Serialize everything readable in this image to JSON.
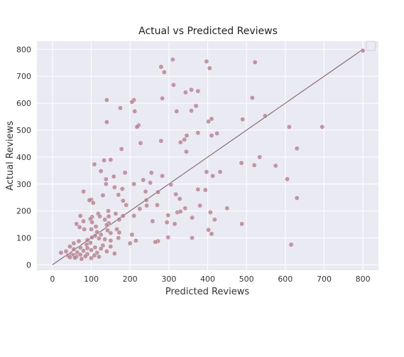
{
  "chart_data": {
    "type": "scatter",
    "title": "Actual vs Predicted Reviews",
    "xlabel": "Predicted Reviews",
    "ylabel": "Actual Reviews",
    "xlim": [
      -40,
      840
    ],
    "ylim": [
      -20,
      830
    ],
    "xticks": [
      0,
      100,
      200,
      300,
      400,
      500,
      600,
      700,
      800
    ],
    "yticks": [
      0,
      100,
      200,
      300,
      400,
      500,
      600,
      700,
      800
    ],
    "grid": true,
    "legend": "top-right (empty box)",
    "colors": {
      "background": "#eaeaf2",
      "grid": "#ffffff",
      "points": "#b07a88",
      "reference_line": "#8a6a7e"
    },
    "reference_line": {
      "from": [
        0,
        0
      ],
      "to": [
        800,
        800
      ]
    },
    "points": [
      [
        800,
        795
      ],
      [
        310,
        762
      ],
      [
        397,
        755
      ],
      [
        522,
        752
      ],
      [
        280,
        735
      ],
      [
        288,
        715
      ],
      [
        405,
        730
      ],
      [
        312,
        668
      ],
      [
        358,
        650
      ],
      [
        375,
        645
      ],
      [
        343,
        640
      ],
      [
        515,
        620
      ],
      [
        283,
        618
      ],
      [
        140,
        612
      ],
      [
        210,
        612
      ],
      [
        205,
        605
      ],
      [
        370,
        590
      ],
      [
        358,
        572
      ],
      [
        320,
        570
      ],
      [
        212,
        570
      ],
      [
        175,
        582
      ],
      [
        548,
        553
      ],
      [
        410,
        542
      ],
      [
        402,
        532
      ],
      [
        140,
        530
      ],
      [
        490,
        540
      ],
      [
        222,
        518
      ],
      [
        218,
        512
      ],
      [
        610,
        512
      ],
      [
        695,
        512
      ],
      [
        375,
        490
      ],
      [
        424,
        488
      ],
      [
        346,
        480
      ],
      [
        410,
        480
      ],
      [
        340,
        465
      ],
      [
        280,
        460
      ],
      [
        330,
        455
      ],
      [
        227,
        452
      ],
      [
        178,
        430
      ],
      [
        630,
        432
      ],
      [
        345,
        420
      ],
      [
        487,
        378
      ],
      [
        534,
        400
      ],
      [
        133,
        388
      ],
      [
        150,
        390
      ],
      [
        108,
        373
      ],
      [
        520,
        370
      ],
      [
        575,
        368
      ],
      [
        125,
        348
      ],
      [
        255,
        342
      ],
      [
        397,
        345
      ],
      [
        432,
        345
      ],
      [
        187,
        342
      ],
      [
        413,
        330
      ],
      [
        283,
        330
      ],
      [
        158,
        328
      ],
      [
        605,
        318
      ],
      [
        138,
        318
      ],
      [
        234,
        315
      ],
      [
        138,
        300
      ],
      [
        252,
        305
      ],
      [
        305,
        298
      ],
      [
        160,
        288
      ],
      [
        210,
        300
      ],
      [
        375,
        280
      ],
      [
        180,
        282
      ],
      [
        394,
        278
      ],
      [
        240,
        272
      ],
      [
        272,
        270
      ],
      [
        318,
        262
      ],
      [
        170,
        260
      ],
      [
        80,
        272
      ],
      [
        130,
        258
      ],
      [
        328,
        245
      ],
      [
        630,
        248
      ],
      [
        242,
        240
      ],
      [
        100,
        242
      ],
      [
        95,
        240
      ],
      [
        182,
        238
      ],
      [
        105,
        230
      ],
      [
        243,
        220
      ],
      [
        380,
        220
      ],
      [
        190,
        222
      ],
      [
        225,
        208
      ],
      [
        270,
        222
      ],
      [
        144,
        200
      ],
      [
        342,
        210
      ],
      [
        322,
        195
      ],
      [
        118,
        190
      ],
      [
        330,
        198
      ],
      [
        450,
        210
      ],
      [
        407,
        195
      ],
      [
        210,
        182
      ],
      [
        163,
        190
      ],
      [
        182,
        182
      ],
      [
        145,
        180
      ],
      [
        298,
        184
      ],
      [
        122,
        180
      ],
      [
        72,
        182
      ],
      [
        102,
        178
      ],
      [
        360,
        175
      ],
      [
        98,
        170
      ],
      [
        418,
        168
      ],
      [
        135,
        168
      ],
      [
        172,
        168
      ],
      [
        258,
        162
      ],
      [
        295,
        158
      ],
      [
        315,
        152
      ],
      [
        488,
        152
      ],
      [
        80,
        162
      ],
      [
        102,
        158
      ],
      [
        145,
        155
      ],
      [
        62,
        152
      ],
      [
        140,
        148
      ],
      [
        70,
        140
      ],
      [
        112,
        142
      ],
      [
        100,
        132
      ],
      [
        82,
        132
      ],
      [
        166,
        132
      ],
      [
        402,
        130
      ],
      [
        142,
        128
      ],
      [
        115,
        122
      ],
      [
        172,
        120
      ],
      [
        150,
        118
      ],
      [
        410,
        115
      ],
      [
        125,
        112
      ],
      [
        205,
        112
      ],
      [
        110,
        108
      ],
      [
        102,
        102
      ],
      [
        360,
        100
      ],
      [
        298,
        102
      ],
      [
        170,
        100
      ],
      [
        120,
        98
      ],
      [
        135,
        95
      ],
      [
        90,
        92
      ],
      [
        150,
        90
      ],
      [
        215,
        90
      ],
      [
        272,
        88
      ],
      [
        265,
        85
      ],
      [
        68,
        88
      ],
      [
        200,
        80
      ],
      [
        98,
        82
      ],
      [
        55,
        80
      ],
      [
        88,
        75
      ],
      [
        130,
        72
      ],
      [
        615,
        75
      ],
      [
        150,
        68
      ],
      [
        110,
        65
      ],
      [
        45,
        68
      ],
      [
        72,
        64
      ],
      [
        90,
        62
      ],
      [
        125,
        60
      ],
      [
        55,
        58
      ],
      [
        100,
        55
      ],
      [
        80,
        52
      ],
      [
        140,
        50
      ],
      [
        35,
        50
      ],
      [
        22,
        45
      ],
      [
        64,
        46
      ],
      [
        115,
        45
      ],
      [
        160,
        42
      ],
      [
        48,
        40
      ],
      [
        90,
        40
      ],
      [
        72,
        38
      ],
      [
        55,
        36
      ],
      [
        108,
        35
      ],
      [
        40,
        34
      ],
      [
        85,
        32
      ],
      [
        62,
        30
      ],
      [
        120,
        30
      ],
      [
        58,
        26
      ],
      [
        100,
        25
      ],
      [
        75,
        22
      ],
      [
        45,
        28
      ]
    ]
  }
}
